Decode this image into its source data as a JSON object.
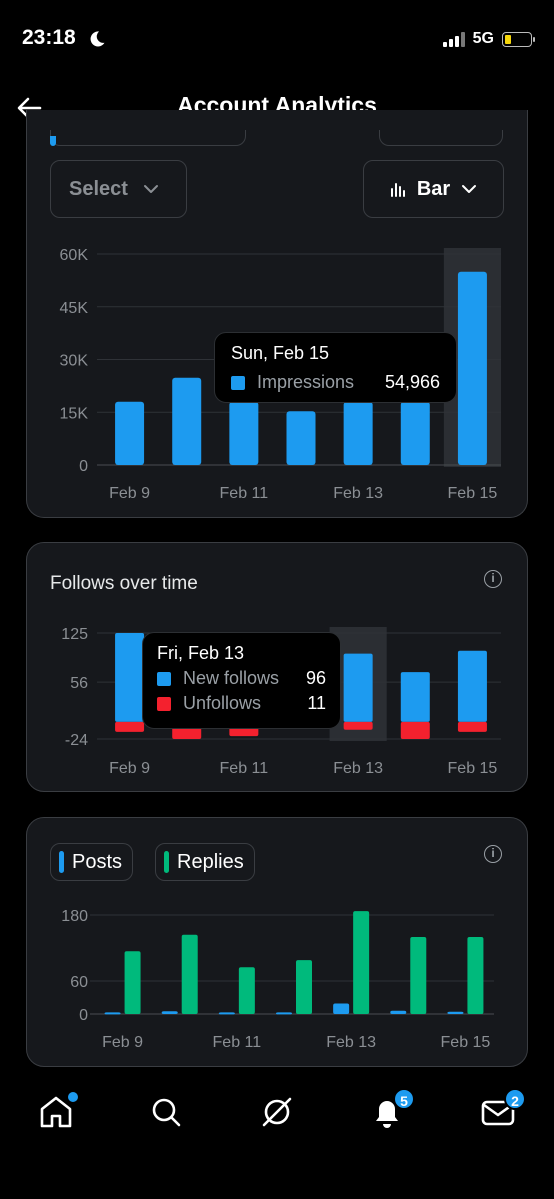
{
  "status_bar": {
    "time": "23:18",
    "network": "5G"
  },
  "header": {
    "title": "Account Analytics"
  },
  "controls": {
    "select_label": "Select",
    "chart_type_label": "Bar"
  },
  "impressions_tooltip": {
    "date": "Sun, Feb 15",
    "label": "Impressions",
    "value": "54,966"
  },
  "follows": {
    "title": "Follows over time"
  },
  "follows_tooltip": {
    "date": "Fri, Feb 13",
    "new_label": "New follows",
    "new_value": "96",
    "unfollow_label": "Unfollows",
    "unfollow_value": "11"
  },
  "posts_legend": {
    "posts": "Posts",
    "replies": "Replies"
  },
  "tabbar": {
    "notifications_badge": "5",
    "messages_badge": "2"
  },
  "colors": {
    "blue": "#1d9bf0",
    "green": "#00ba7c",
    "red": "#f4212e"
  },
  "chart_data": [
    {
      "type": "bar",
      "x_tick_labels": [
        "Feb 9",
        "Feb 11",
        "Feb 13",
        "Feb 15"
      ],
      "categories": [
        "Feb 9",
        "Feb 10",
        "Feb 11",
        "Feb 12",
        "Feb 13",
        "Feb 14",
        "Feb 15"
      ],
      "series": [
        {
          "name": "Impressions",
          "color": "#1d9bf0",
          "values": [
            18000,
            24800,
            18000,
            15300,
            18000,
            18000,
            54966
          ]
        }
      ],
      "yticks": [
        "60K",
        "45K",
        "30K",
        "15K",
        "0"
      ],
      "ytick_values": [
        60000,
        45000,
        30000,
        15000,
        0
      ],
      "ylim": [
        0,
        60000
      ],
      "highlight_index": 6
    },
    {
      "type": "bar",
      "x_tick_labels": [
        "Feb 9",
        "Feb 11",
        "Feb 13",
        "Feb 15"
      ],
      "categories": [
        "Feb 9",
        "Feb 10",
        "Feb 11",
        "Feb 12",
        "Feb 13",
        "Feb 14",
        "Feb 15"
      ],
      "series": [
        {
          "name": "New follows",
          "color": "#1d9bf0",
          "values": [
            125,
            60,
            60,
            55,
            96,
            70,
            100
          ]
        },
        {
          "name": "Unfollows",
          "color": "#f4212e",
          "values": [
            -14,
            -24,
            -20,
            -8,
            -11,
            -24,
            -14
          ]
        }
      ],
      "yticks": [
        "125",
        "56",
        "-24"
      ],
      "ytick_values": [
        125,
        56,
        -24
      ],
      "ylim": [
        -24,
        125
      ],
      "highlight_index": 4
    },
    {
      "type": "bar",
      "x_tick_labels": [
        "Feb 9",
        "Feb 11",
        "Feb 13",
        "Feb 15"
      ],
      "categories": [
        "Feb 9",
        "Feb 10",
        "Feb 11",
        "Feb 12",
        "Feb 13",
        "Feb 14",
        "Feb 15"
      ],
      "series": [
        {
          "name": "Posts",
          "color": "#1d9bf0",
          "values": [
            3,
            5,
            3,
            3,
            19,
            6,
            4
          ]
        },
        {
          "name": "Replies",
          "color": "#00ba7c",
          "values": [
            114,
            144,
            85,
            98,
            187,
            140,
            140
          ]
        }
      ],
      "yticks": [
        "180",
        "60",
        "0"
      ],
      "ytick_values": [
        180,
        60,
        0
      ],
      "ylim": [
        0,
        180
      ]
    }
  ]
}
